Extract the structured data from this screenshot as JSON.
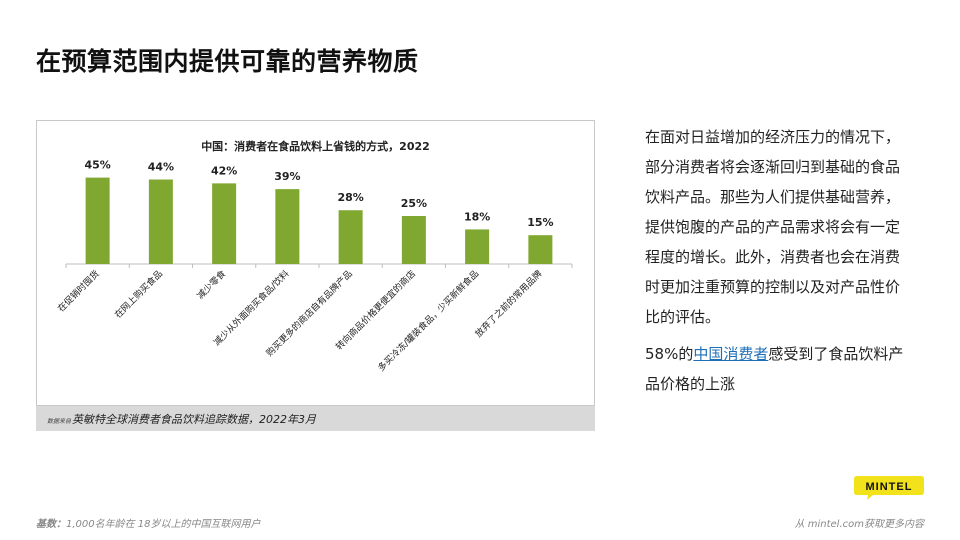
{
  "slide": {
    "title": "在预算范围内提供可靠的营养物质"
  },
  "chart_data": {
    "type": "bar",
    "title": "中国：消费者在食品饮料上省钱的方式，2022",
    "categories": [
      "在促销时囤货",
      "在网上购买食品",
      "减少零食",
      "减少从外面购买食品/饮料",
      "购买更多的商店自有品牌产品",
      "转向商品价格更便宜的商店",
      "多买冷冻/罐装食品，少买新鲜食品",
      "放弃了之前的常用品牌"
    ],
    "values": [
      45,
      44,
      42,
      39,
      28,
      25,
      18,
      15
    ],
    "value_labels": [
      "45%",
      "44%",
      "42%",
      "39%",
      "28%",
      "25%",
      "18%",
      "15%"
    ],
    "bar_color": "#80a830",
    "ylim": [
      0,
      50
    ]
  },
  "source": {
    "prefix": "数据来自",
    "text": "英敏特全球消费者食品饮料追踪数据，2022年3月"
  },
  "side": {
    "paragraph": "在面对日益增加的经济压力的情况下，部分消费者将会逐渐回归到基础的食品饮料产品。那些为人们提供基础营养，提供饱腹的产品的产品需求将会有一定程度的增长。此外，消费者也会在消费时更加注重预算的控制以及对产品性价比的评估。",
    "note_prefix": "58%的",
    "note_link": "中国消费者",
    "note_suffix": "感受到了食品饮料产品价格的上涨"
  },
  "footer": {
    "base_label": "基数：",
    "base_text": "1,000名年龄在 18岁以上的中国互联网用户",
    "more": "从 mintel.com获取更多内容"
  },
  "logo": {
    "text": "MINTEL",
    "color": "#f2e21b"
  }
}
